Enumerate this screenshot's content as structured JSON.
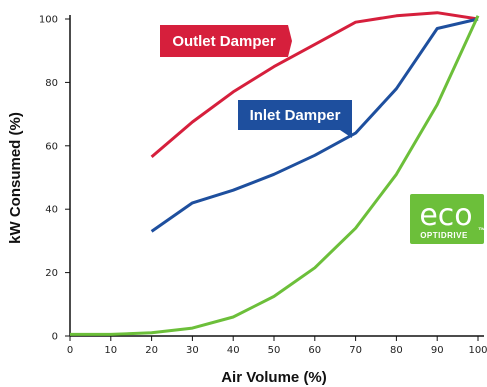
{
  "chart_data": {
    "type": "line",
    "title": "",
    "xlabel": "Air Volume (%)",
    "ylabel": "kW Consumed (%)",
    "xlim": [
      0,
      100
    ],
    "ylim": [
      0,
      100
    ],
    "x_ticks": [
      "0",
      "10",
      "20",
      "30",
      "40",
      "50",
      "60",
      "70",
      "80",
      "90",
      "100"
    ],
    "y_ticks": [
      "0",
      "20",
      "40",
      "60",
      "80",
      "100"
    ],
    "grid": false,
    "series": [
      {
        "name": "Outlet Damper",
        "color": "#d61f3c",
        "x": [
          20,
          30,
          40,
          50,
          60,
          70,
          80,
          90,
          100
        ],
        "values": [
          56.5,
          67.5,
          77,
          85,
          92,
          99,
          101,
          102,
          100
        ]
      },
      {
        "name": "Inlet Damper",
        "color": "#1e4f9e",
        "x": [
          20,
          30,
          40,
          50,
          60,
          70,
          80,
          90,
          100
        ],
        "values": [
          33,
          42,
          46,
          51,
          57,
          64,
          78,
          97,
          100
        ]
      },
      {
        "name": "",
        "color": "#6cbf3a",
        "x": [
          0,
          10,
          20,
          30,
          40,
          50,
          60,
          70,
          80,
          90,
          100
        ],
        "values": [
          0.5,
          0.5,
          1,
          2.5,
          6,
          12.5,
          21.5,
          34,
          51,
          73,
          101
        ]
      }
    ]
  },
  "labels": {
    "outlet": "Outlet Damper",
    "inlet": "Inlet Damper"
  },
  "logo": {
    "word": "eco",
    "brand": "OPTIDRIVE",
    "tm": "™",
    "color": "#6cbf3a"
  }
}
